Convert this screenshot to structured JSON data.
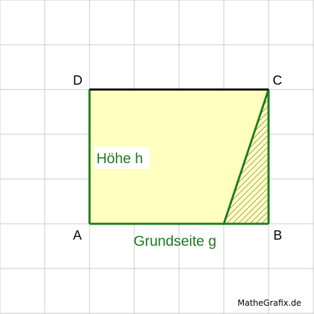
{
  "vertices": {
    "A": "A",
    "B": "B",
    "C": "C",
    "D": "D"
  },
  "labels": {
    "height": "Höhe h",
    "base": "Grundseite g"
  },
  "credit": "MatheGrafix.de",
  "colors": {
    "grid": "#c8c8c8",
    "fill": "#ffffc0",
    "green": "#1a7a1a",
    "top_edge": "#000000",
    "hatch": "#333333",
    "height_label_bg": "#ffffff"
  }
}
